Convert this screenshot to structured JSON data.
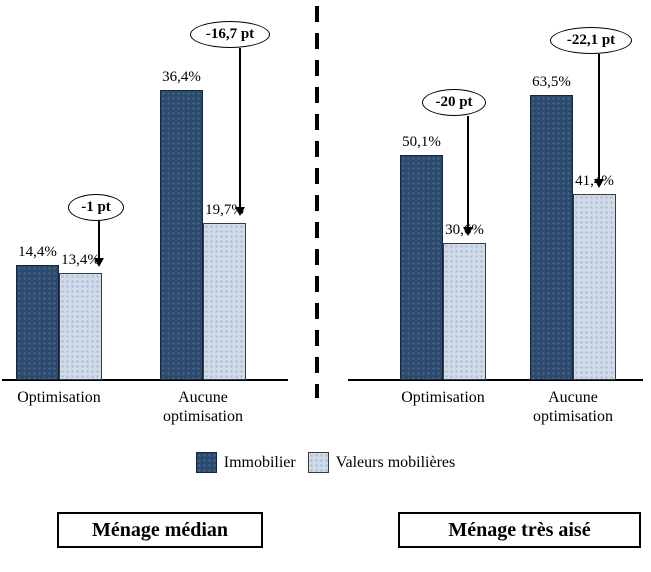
{
  "chart_data": {
    "type": "bar",
    "unit": "%",
    "legend": [
      "Immobilier",
      "Valeurs mobilières"
    ],
    "colors": {
      "immobilier": "#2b4a6e",
      "valeurs_mobilieres": "#cfdbea"
    },
    "panels": [
      {
        "title": "Ménage médian",
        "groups": [
          {
            "label": "Optimisation",
            "annotation": "-1 pt",
            "bars": [
              {
                "series": "Immobilier",
                "value": 14.4,
                "label": "14,4%"
              },
              {
                "series": "Valeurs mobilières",
                "value": 13.4,
                "label": "13,4%"
              }
            ]
          },
          {
            "label": "Aucune optimisation",
            "annotation": "-16,7 pt",
            "bars": [
              {
                "series": "Immobilier",
                "value": 36.4,
                "label": "36,4%"
              },
              {
                "series": "Valeurs mobilières",
                "value": 19.7,
                "label": "19,7%"
              }
            ]
          }
        ]
      },
      {
        "title": "Ménage très aisé",
        "groups": [
          {
            "label": "Optimisation",
            "annotation": "-20 pt",
            "bars": [
              {
                "series": "Immobilier",
                "value": 50.1,
                "label": "50,1%"
              },
              {
                "series": "Valeurs mobilières",
                "value": 30.6,
                "label": "30,6%"
              }
            ]
          },
          {
            "label": "Aucune optimisation",
            "annotation": "-22,1 pt",
            "bars": [
              {
                "series": "Immobilier",
                "value": 63.5,
                "label": "63,5%"
              },
              {
                "series": "Valeurs mobilières",
                "value": 41.4,
                "label": "41,4%"
              }
            ]
          }
        ]
      }
    ]
  }
}
